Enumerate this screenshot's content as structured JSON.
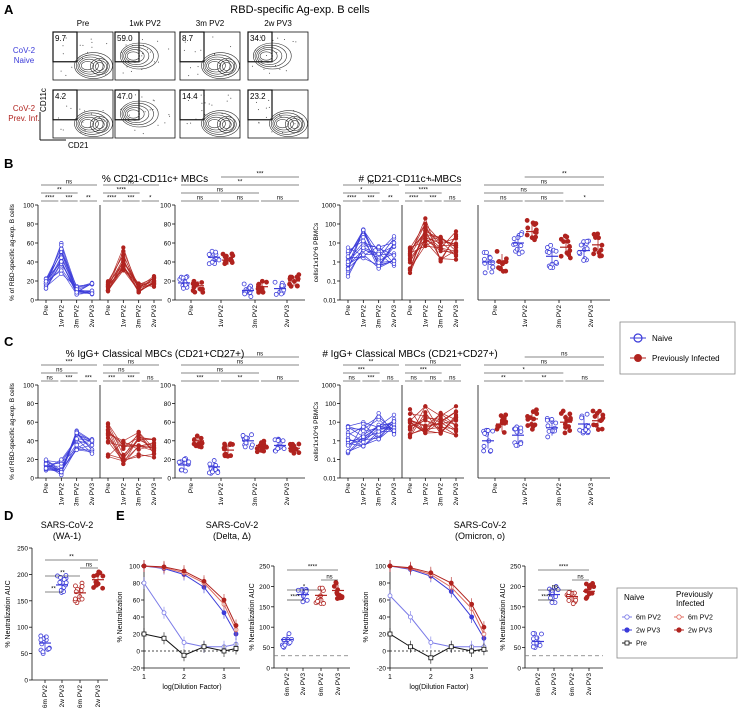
{
  "colors": {
    "naive": "#3b3bd9",
    "prev": "#b0231f",
    "black": "#111111",
    "gray": "#777777"
  },
  "panelA": {
    "letter": "A",
    "title": "RBD-specific Ag-exp. B cells",
    "columns": [
      "Pre",
      "1wk PV2",
      "3m PV2",
      "2w PV3"
    ],
    "rows": [
      {
        "label1": "CoV-2",
        "label2": "Naive",
        "color": "#3b3bd9",
        "values": [
          "9.7",
          "59.0",
          "8.7",
          "34.0"
        ]
      },
      {
        "label1": "CoV-2",
        "label2": "Prev. Inf.",
        "color": "#b0231f",
        "values": [
          "4.2",
          "47.0",
          "14.4",
          "23.2"
        ]
      }
    ],
    "yaxis": "CD11c",
    "xaxis": "CD21"
  },
  "panelB": {
    "letter": "B",
    "title_left": "% CD21-CD11c+ MBCs",
    "title_right": "# CD21-CD11c+ MBCs",
    "ylabel_left": "% of RBD-specific ag-exp. B cells",
    "ylabel_right": "cells/1x10^6 PBMCs",
    "ticks_pct": [
      "0",
      "20",
      "40",
      "60",
      "80",
      "100"
    ],
    "ticks_log": [
      "0.01",
      "0.1",
      "1",
      "10",
      "100",
      "1000"
    ],
    "xcats": [
      "Pre",
      "1w PV2",
      "3m PV2",
      "2w PV3"
    ],
    "sig_left_naive": [
      "****",
      "***",
      "**",
      "**",
      "ns"
    ],
    "sig_left_prev": [
      "****",
      "***",
      "*",
      "****",
      "ns"
    ],
    "sig_left_cmp": [
      "ns",
      "ns",
      "ns",
      "ns",
      "**",
      "***"
    ],
    "sig_right_naive": [
      "****",
      "***",
      "**",
      "*",
      "ns"
    ],
    "sig_right_prev": [
      "****",
      "***",
      "ns",
      "****",
      "***"
    ],
    "sig_right_cmp": [
      "ns",
      "ns",
      "*",
      "ns",
      "ns",
      "**"
    ]
  },
  "panelC": {
    "letter": "C",
    "title_left": "% IgG+ Classical MBCs (CD21+CD27+)",
    "title_right": "# IgG+ Classical MBCs (CD21+CD27+)",
    "ylabel_left": "% of RBD-specific ag-exp. B cells",
    "ylabel_right": "cells/1x10^6 PBMCs",
    "sig_left_naive": [
      "ns",
      "***",
      "***",
      "ns",
      "***"
    ],
    "sig_left_prev": [
      "***",
      "***",
      "ns",
      "ns",
      "ns"
    ],
    "sig_left_cmp": [
      "***",
      "**",
      "ns",
      "ns",
      "ns",
      "ns"
    ],
    "sig_right_naive": [
      "ns",
      "***",
      "ns",
      "***",
      "**"
    ],
    "sig_right_prev": [
      "ns",
      "ns",
      "ns",
      "***",
      "ns"
    ],
    "sig_right_cmp": [
      "**",
      "**",
      "ns",
      "*",
      "ns",
      "ns"
    ]
  },
  "legend_bc": {
    "naive": "Naive",
    "prev": "Previously Infected"
  },
  "panelD": {
    "letter": "D",
    "title1": "SARS-CoV-2",
    "title2": "(WA-1)",
    "ylabel": "% Neutralization AUC",
    "ticks": [
      "0",
      "50",
      "100",
      "150",
      "200",
      "250"
    ],
    "xcats": [
      "6m PV2",
      "2w PV3",
      "6m PV2",
      "2w PV3"
    ],
    "sig": [
      "**",
      "**",
      "ns",
      "**"
    ]
  },
  "panelE": {
    "letter": "E",
    "delta_title1": "SARS-CoV-2",
    "delta_title2": "(Delta, Δ)",
    "omicron_title1": "SARS-CoV-2",
    "omicron_title2": "(Omicron, ο)",
    "curve_ylabel": "% Neutralization",
    "curve_xlabel": "log(Dilution Factor)",
    "curve_yticks": [
      "-20",
      "0",
      "20",
      "40",
      "60",
      "80",
      "100"
    ],
    "curve_xticks": [
      "1",
      "2",
      "3"
    ],
    "auc_ylabel": "% Neutralization AUC",
    "auc_ticks": [
      "0",
      "50",
      "100",
      "150",
      "200",
      "250"
    ],
    "delta_sig": [
      "****",
      "*",
      "ns",
      "****"
    ],
    "omicron_sig": [
      "****",
      "ns",
      "ns",
      "****"
    ]
  },
  "chart_data": [
    {
      "type": "line",
      "title": "% CD21-CD11c+ MBCs",
      "ylabel": "% of RBD-specific ag-exp. B cells",
      "ylim": [
        0,
        100
      ],
      "categories": [
        "Pre",
        "1w PV2",
        "3m PV2",
        "2w PV3"
      ],
      "series": [
        {
          "name": "Naive",
          "values": [
            18,
            45,
            10,
            12
          ]
        },
        {
          "name": "Previously Infected",
          "values": [
            15,
            42,
            14,
            20
          ]
        }
      ]
    },
    {
      "type": "scatter",
      "title": "# CD21-CD11c+ MBCs",
      "ylabel": "cells/1x10^6 PBMCs",
      "yscale": "log",
      "ylim": [
        0.01,
        1000
      ],
      "categories": [
        "Pre",
        "1w PV2",
        "3m PV2",
        "2w PV3"
      ],
      "series": [
        {
          "name": "Naive",
          "values": [
            1,
            10,
            2,
            4
          ]
        },
        {
          "name": "Previously Infected",
          "values": [
            1,
            40,
            6,
            8
          ]
        }
      ]
    },
    {
      "type": "line",
      "title": "% IgG+ Classical MBCs (CD21+CD27+)",
      "ylim": [
        0,
        100
      ],
      "categories": [
        "Pre",
        "1w PV2",
        "3m PV2",
        "2w PV3"
      ],
      "series": [
        {
          "name": "Naive",
          "values": [
            14,
            12,
            40,
            35
          ]
        },
        {
          "name": "Previously Infected",
          "values": [
            40,
            30,
            35,
            32
          ]
        }
      ]
    },
    {
      "type": "scatter",
      "title": "# IgG+ Classical MBCs (CD21+CD27+)",
      "yscale": "log",
      "ylim": [
        0.01,
        1000
      ],
      "categories": [
        "Pre",
        "1w PV2",
        "3m PV2",
        "2w PV3"
      ],
      "series": [
        {
          "name": "Naive",
          "values": [
            1,
            2,
            5,
            8
          ]
        },
        {
          "name": "Previously Infected",
          "values": [
            8,
            15,
            10,
            12
          ]
        }
      ]
    },
    {
      "type": "scatter",
      "title": "SARS-CoV-2 (WA-1)",
      "ylabel": "% Neutralization AUC",
      "ylim": [
        0,
        250
      ],
      "categories": [
        "6m PV2",
        "2w PV3",
        "6m PV2",
        "2w PV3"
      ],
      "series": [
        {
          "name": "Naive",
          "values": [
            70,
            180
          ]
        },
        {
          "name": "Previously Infected",
          "values": [
            165,
            190
          ]
        }
      ]
    },
    {
      "type": "line",
      "title": "SARS-CoV-2 (Delta, Δ)",
      "xlabel": "log(Dilution Factor)",
      "ylabel": "% Neutralization",
      "ylim": [
        -20,
        100
      ],
      "x": [
        1,
        1.5,
        2,
        2.5,
        3,
        3.3
      ],
      "series": [
        {
          "name": "Naive 6m PV2",
          "values": [
            80,
            45,
            10,
            5,
            5,
            8
          ]
        },
        {
          "name": "Naive 2w PV3",
          "values": [
            100,
            97,
            90,
            75,
            45,
            20
          ]
        },
        {
          "name": "Naive Pre",
          "values": [
            20,
            15,
            -5,
            5,
            0,
            3
          ]
        },
        {
          "name": "Previously Infected 6m PV2",
          "values": [
            100,
            98,
            92,
            80,
            55,
            25
          ]
        },
        {
          "name": "Previously Infected 2w PV3",
          "values": [
            100,
            99,
            94,
            82,
            60,
            30
          ]
        }
      ]
    },
    {
      "type": "scatter",
      "title": "Delta AUC",
      "ylabel": "% Neutralization AUC",
      "ylim": [
        0,
        250
      ],
      "categories": [
        "6m PV2",
        "2w PV3",
        "6m PV2",
        "2w PV3"
      ],
      "series": [
        {
          "name": "Naive",
          "values": [
            70,
            180
          ]
        },
        {
          "name": "Previously Infected",
          "values": [
            178,
            190
          ]
        }
      ]
    },
    {
      "type": "line",
      "title": "SARS-CoV-2 (Omicron, ο)",
      "xlabel": "log(Dilution Factor)",
      "ylabel": "% Neutralization",
      "ylim": [
        -20,
        100
      ],
      "x": [
        1,
        1.5,
        2,
        2.5,
        3,
        3.3
      ],
      "series": [
        {
          "name": "Naive 6m PV2",
          "values": [
            65,
            40,
            10,
            5,
            5,
            5
          ]
        },
        {
          "name": "Naive 2w PV3",
          "values": [
            100,
            96,
            88,
            70,
            40,
            15
          ]
        },
        {
          "name": "Naive Pre",
          "values": [
            20,
            5,
            -8,
            5,
            0,
            2
          ]
        },
        {
          "name": "Previously Infected 6m PV2",
          "values": [
            100,
            97,
            90,
            75,
            50,
            20
          ]
        },
        {
          "name": "Previously Infected 2w PV3",
          "values": [
            100,
            98,
            92,
            80,
            55,
            28
          ]
        }
      ]
    },
    {
      "type": "scatter",
      "title": "Omicron AUC",
      "ylabel": "% Neutralization AUC",
      "ylim": [
        0,
        250
      ],
      "categories": [
        "6m PV2",
        "2w PV3",
        "6m PV2",
        "2w PV3"
      ],
      "series": [
        {
          "name": "Naive",
          "values": [
            65,
            180
          ]
        },
        {
          "name": "Previously Infected",
          "values": [
            175,
            188
          ]
        }
      ]
    }
  ],
  "legend_e": {
    "col1": "Naive",
    "col2a": "Previously",
    "col2b": "Infected",
    "items": [
      {
        "label": "6m PV2",
        "color": "#7b7be8",
        "marker": "open"
      },
      {
        "label": "2w PV3",
        "color": "#3b3bd9",
        "marker": "filled"
      },
      {
        "label": "Pre",
        "color": "#111111",
        "marker": "square"
      },
      {
        "label": "6m PV2",
        "color": "#e06a5e",
        "marker": "open"
      },
      {
        "label": "2w PV3",
        "color": "#b0231f",
        "marker": "filled"
      }
    ]
  }
}
